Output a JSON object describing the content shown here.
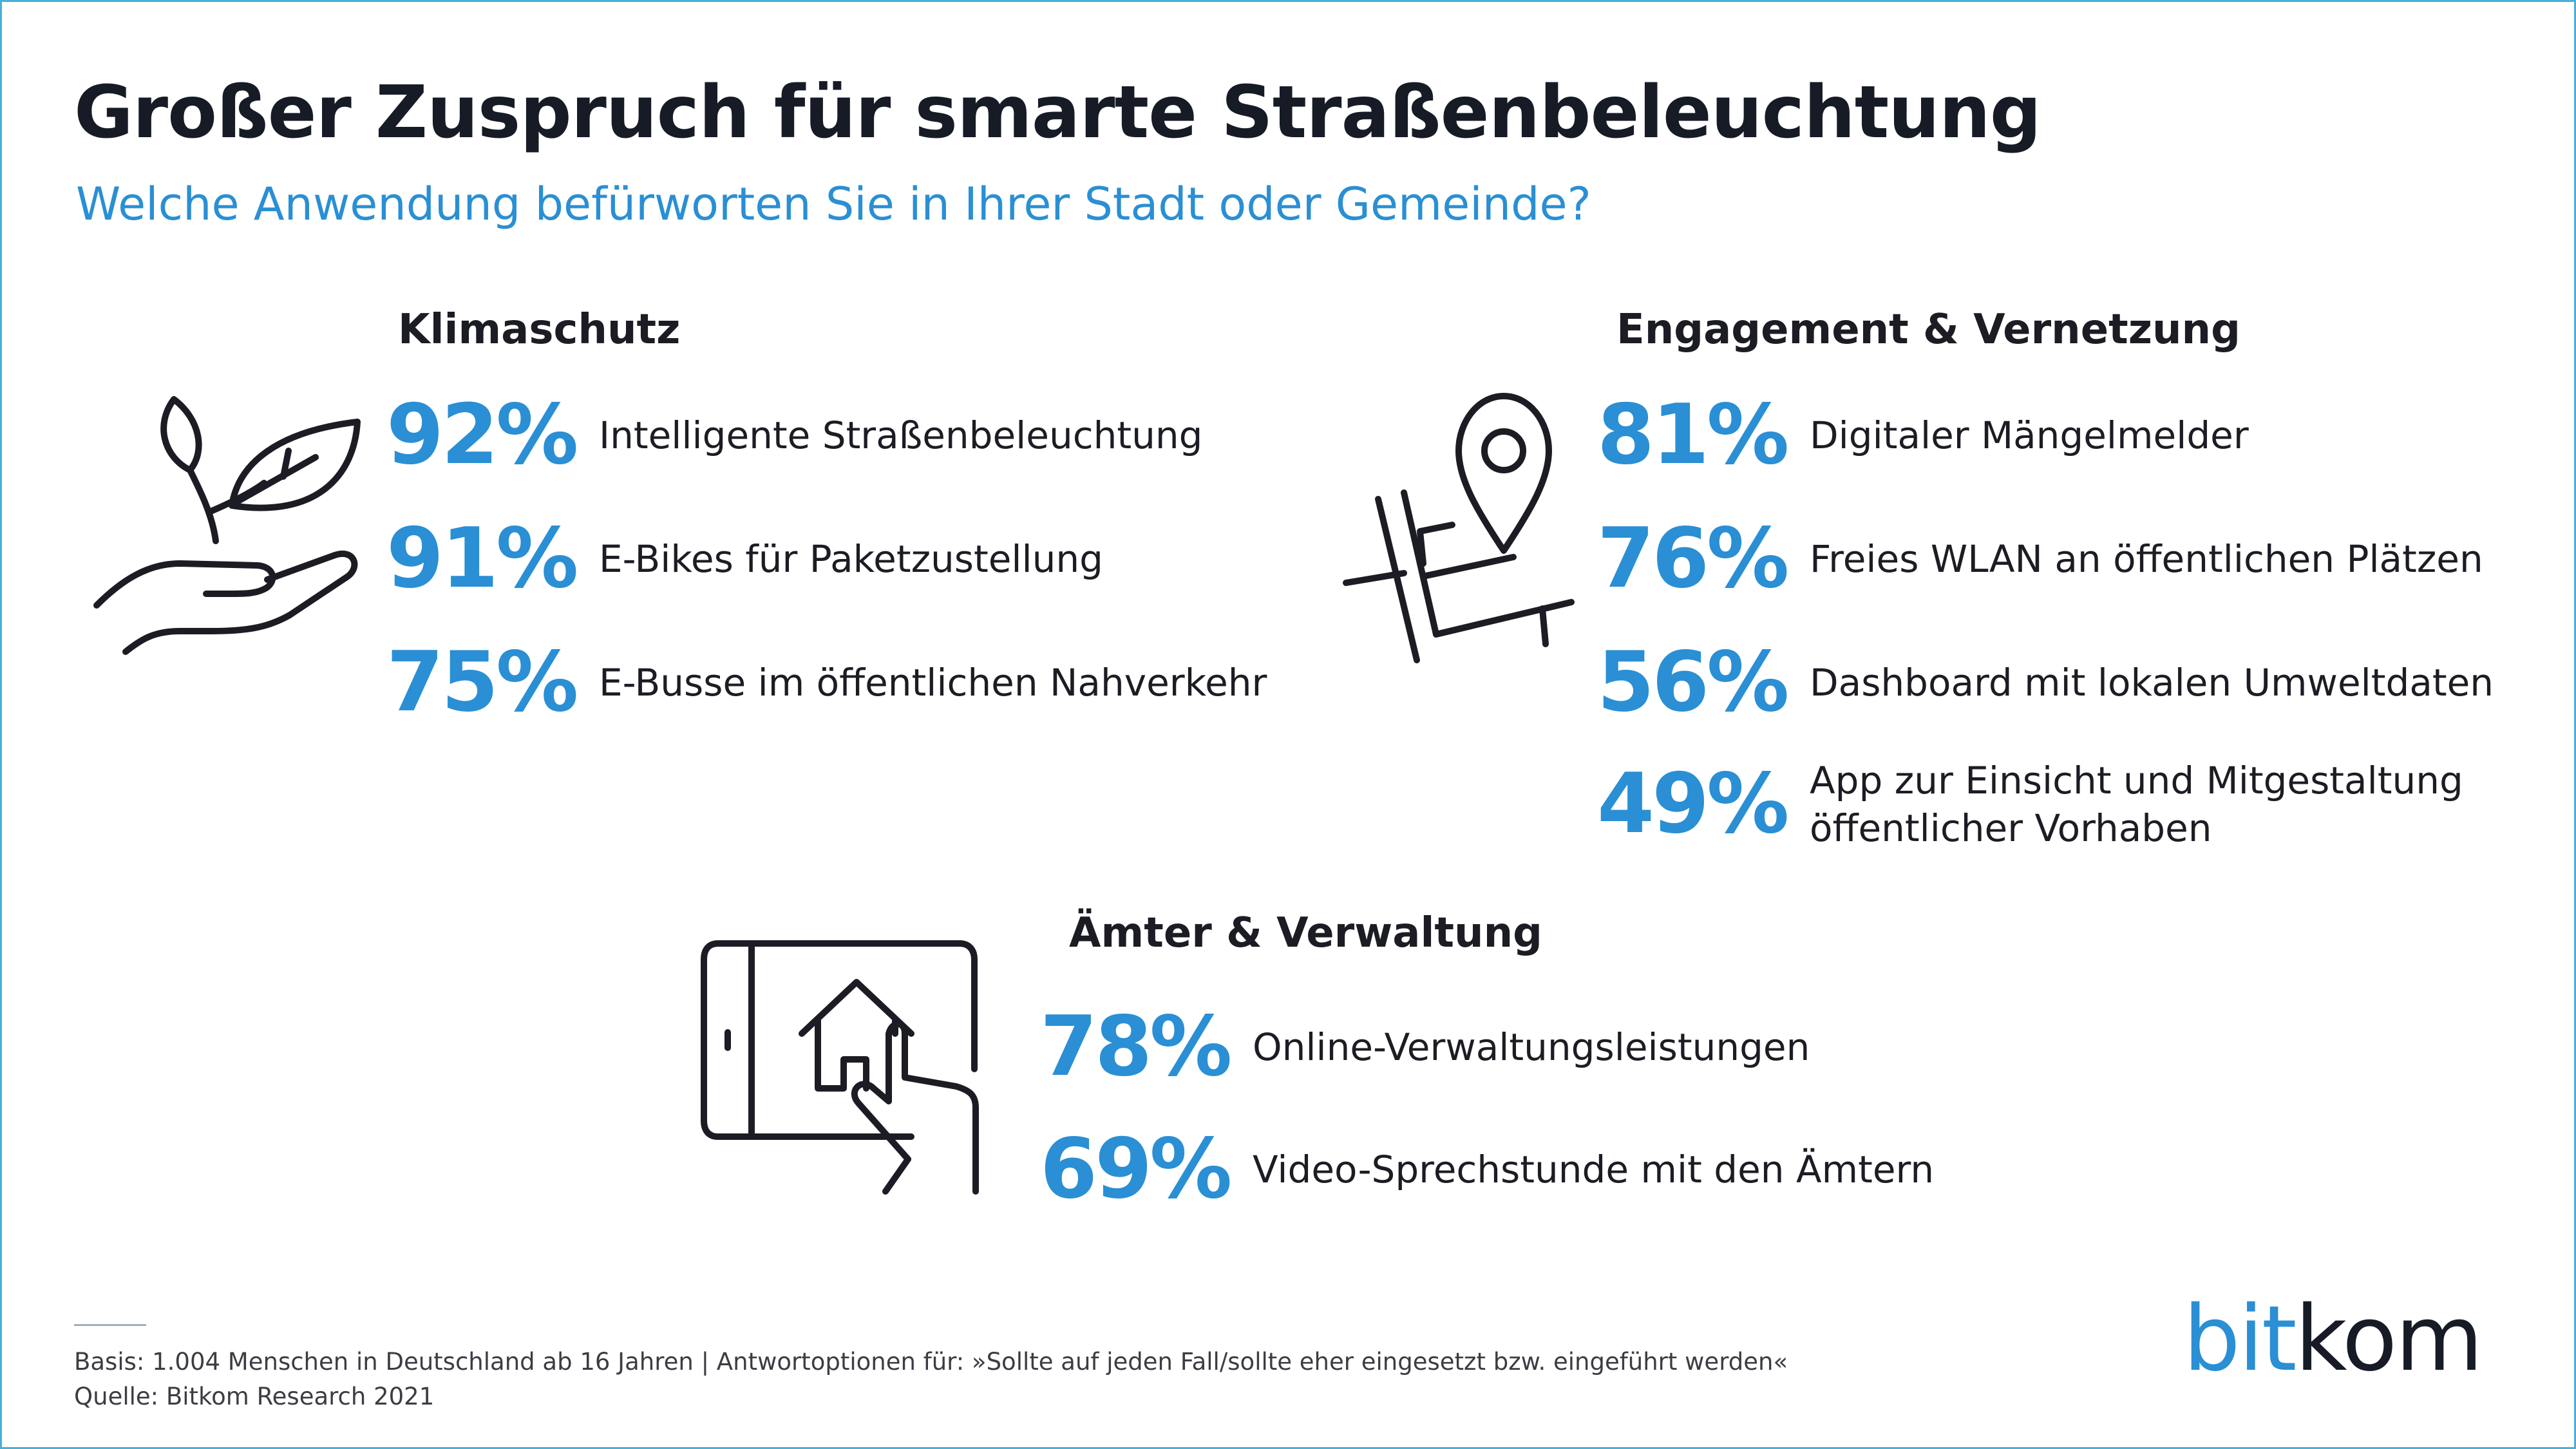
{
  "title": "Großer Zuspruch für smarte Straßenbeleuchtung",
  "subtitle": "Welche Anwendung befürworten Sie in Ihrer Stadt oder Gemeinde?",
  "sections": [
    {
      "heading": "Klimaschutz",
      "icon": "plant-in-hand-icon",
      "items": [
        {
          "percent": "92%",
          "label": "Intelligente Straßenbeleuchtung"
        },
        {
          "percent": "91%",
          "label": "E-Bikes für Paketzustellung"
        },
        {
          "percent": "75%",
          "label": "E-Busse im öffentlichen Nahverkehr"
        }
      ]
    },
    {
      "heading": "Engagement & Vernetzung",
      "icon": "map-pin-icon",
      "items": [
        {
          "percent": "81%",
          "label": "Digitaler Mängelmelder"
        },
        {
          "percent": "76%",
          "label": "Freies WLAN an öffentlichen Plätzen"
        },
        {
          "percent": "56%",
          "label": "Dashboard mit lokalen Umweltdaten"
        },
        {
          "percent": "49%",
          "label_line1": "App zur Einsicht und Mitgestaltung",
          "label_line2": "öffentlicher Vorhaben"
        }
      ]
    },
    {
      "heading": "Ämter & Verwaltung",
      "icon": "tablet-house-touch-icon",
      "items": [
        {
          "percent": "78%",
          "label": "Online-Verwaltungsleistungen"
        },
        {
          "percent": "69%",
          "label": "Video-Sprechstunde mit den Ämtern"
        }
      ]
    }
  ],
  "footer": {
    "basis": "Basis: 1.004 Menschen in Deutschland ab 16 Jahren | Antwortoptionen für: »Sollte auf jeden Fall/sollte eher eingesetzt bzw. eingeführt werden«",
    "source": "Quelle: Bitkom Research 2021"
  },
  "logo": {
    "part1": "bit",
    "part2": "kom"
  },
  "colors": {
    "accent": "#2a8fd4",
    "text": "#1c1c24",
    "border": "#4ab0d8"
  }
}
